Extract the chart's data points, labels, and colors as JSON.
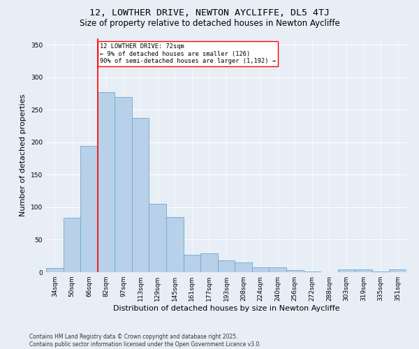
{
  "title": "12, LOWTHER DRIVE, NEWTON AYCLIFFE, DL5 4TJ",
  "subtitle": "Size of property relative to detached houses in Newton Aycliffe",
  "xlabel": "Distribution of detached houses by size in Newton Aycliffe",
  "ylabel": "Number of detached properties",
  "footnote": "Contains HM Land Registry data © Crown copyright and database right 2025.\nContains public sector information licensed under the Open Government Licence v3.0.",
  "categories": [
    "34sqm",
    "50sqm",
    "66sqm",
    "82sqm",
    "97sqm",
    "113sqm",
    "129sqm",
    "145sqm",
    "161sqm",
    "177sqm",
    "193sqm",
    "208sqm",
    "224sqm",
    "240sqm",
    "256sqm",
    "272sqm",
    "288sqm",
    "303sqm",
    "319sqm",
    "335sqm",
    "351sqm"
  ],
  "values": [
    6,
    84,
    195,
    277,
    270,
    238,
    105,
    85,
    27,
    29,
    18,
    15,
    8,
    7,
    3,
    1,
    0,
    4,
    4,
    1,
    4
  ],
  "bar_color": "#b8d0e8",
  "bar_edge_color": "#6aaad4",
  "red_line_x": 2.5,
  "annotation_text": "12 LOWTHER DRIVE: 72sqm\n← 9% of detached houses are smaller (126)\n90% of semi-detached houses are larger (1,192) →",
  "annotation_box_color": "white",
  "annotation_box_edge": "red",
  "ylim": [
    0,
    360
  ],
  "yticks": [
    0,
    50,
    100,
    150,
    200,
    250,
    300,
    350
  ],
  "bg_color": "#e8eef5",
  "plot_bg_color": "#e8eef5",
  "grid_color": "white",
  "title_fontsize": 9.5,
  "subtitle_fontsize": 8.5,
  "axis_label_fontsize": 8,
  "tick_fontsize": 6.5,
  "footnote_fontsize": 5.5
}
